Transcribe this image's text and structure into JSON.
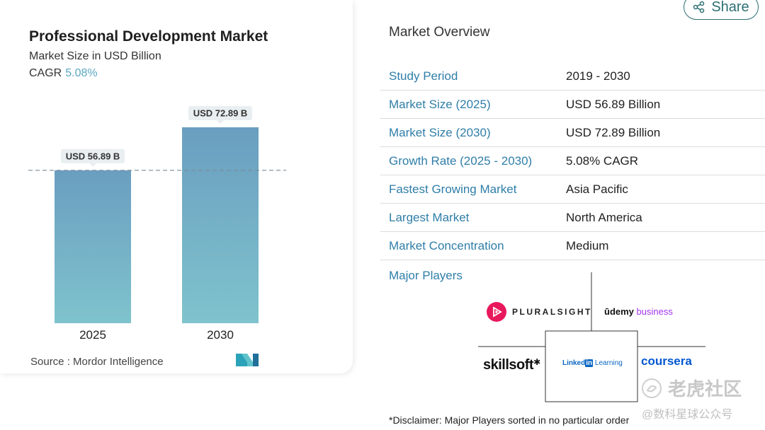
{
  "chart_card": {
    "title": "Professional Development Market",
    "subtitle": "Market Size in USD Billion",
    "cagr_label": "CAGR",
    "cagr_value": "5.08%",
    "source": "Source :  Mordor Intelligence"
  },
  "chart_data": {
    "type": "bar",
    "title": "Professional Development Market",
    "subtitle": "Market Size in USD Billion",
    "categories": [
      "2025",
      "2030"
    ],
    "values": [
      56.89,
      72.89
    ],
    "data_labels": [
      "USD 56.89 B",
      "USD 72.89 B"
    ],
    "reference_line_value": 56.89,
    "ylim": [
      0,
      72.89
    ],
    "grid": false,
    "colors": {
      "bar_top": "#6a9ec0",
      "bar_bottom": "#7fc3cd",
      "label_bg": "#e9eef1",
      "ref_line": "#7a8a96"
    }
  },
  "overview": {
    "share_label": "Share",
    "title": "Market Overview",
    "rows": [
      {
        "label": "Study Period",
        "value": "2019 - 2030"
      },
      {
        "label": "Market Size (2025)",
        "value": "USD 56.89 Billion"
      },
      {
        "label": "Market Size (2030)",
        "value": "USD 72.89 Billion"
      },
      {
        "label": "Growth Rate (2025 - 2030)",
        "value": "5.08% CAGR"
      },
      {
        "label": "Fastest Growing Market",
        "value": "Asia Pacific"
      },
      {
        "label": "Largest Market",
        "value": "North America"
      },
      {
        "label": "Market Concentration",
        "value": "Medium"
      }
    ],
    "major_players_label": "Major Players",
    "players": {
      "pluralsight": "PLURALSIGHT",
      "udemy_1": "ūdemy",
      "udemy_2": "business",
      "skillsoft": "skillsoft",
      "linkedin_1": "Linked",
      "linkedin_2": "in",
      "linkedin_3": " Learning",
      "coursera": "coursera"
    },
    "disclaimer": "*Disclaimer: Major Players sorted in no particular order"
  },
  "watermark": {
    "line1": "老虎社区",
    "line2": "@数科星球公众号"
  },
  "colors": {
    "accent": "#2f7ea8",
    "share": "#2d6f73",
    "pluralsight": "#e8185d",
    "coursera": "#0056d2",
    "linkedin": "#0a66c2"
  }
}
